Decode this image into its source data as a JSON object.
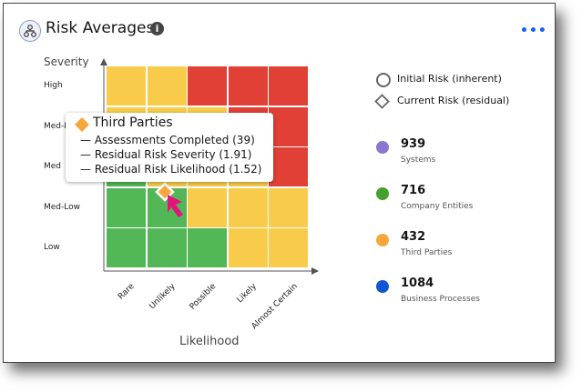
{
  "header": {
    "title": "Risk Averages",
    "info_icon": "info-icon",
    "hub_icon": "hierarchy-icon",
    "more_icon": "overflow-menu-icon"
  },
  "chart_data": {
    "type": "heatmap",
    "ylabel": "Severity",
    "xlabel": "Likelihood",
    "y_categories": [
      "High",
      "Med-High",
      "Med",
      "Med-Low",
      "Low"
    ],
    "x_categories": [
      "Rare",
      "Unlikely",
      "Possible",
      "Likely",
      "Almost Certain"
    ],
    "cells": [
      [
        "yellow",
        "yellow",
        "red",
        "red",
        "red"
      ],
      [
        "yellow",
        "yellow",
        "yellow",
        "red",
        "red"
      ],
      [
        "green",
        "yellow",
        "yellow",
        "yellow",
        "red"
      ],
      [
        "green",
        "green",
        "yellow",
        "yellow",
        "yellow"
      ],
      [
        "green",
        "green",
        "green",
        "yellow",
        "yellow"
      ]
    ],
    "colors": {
      "green": "#54b757",
      "yellow": "#f8cc4a",
      "red": "#e04036"
    },
    "markers": [
      {
        "series": "Third Parties",
        "shape": "diamond",
        "severity": 1.91,
        "likelihood": 1.52,
        "color": "#f5a73d"
      }
    ]
  },
  "tooltip": {
    "title": "Third Parties",
    "lines": [
      "— Assessments Completed (39)",
      "— Residual Risk Severity (1.91)",
      "— Residual Risk Likelihood (1.52)"
    ]
  },
  "legend": {
    "shapes": [
      {
        "label": "Initial Risk (inherent)",
        "shape": "circle"
      },
      {
        "label": "Current Risk (residual)",
        "shape": "diamond"
      }
    ],
    "series": [
      {
        "value": "939",
        "label": "Systems",
        "color": "#8b77d1"
      },
      {
        "value": "716",
        "label": "Company Entities",
        "color": "#45a12f"
      },
      {
        "value": "432",
        "label": "Third Parties",
        "color": "#f5a73d"
      },
      {
        "value": "1084",
        "label": "Business Processes",
        "color": "#0f55d4"
      }
    ]
  }
}
